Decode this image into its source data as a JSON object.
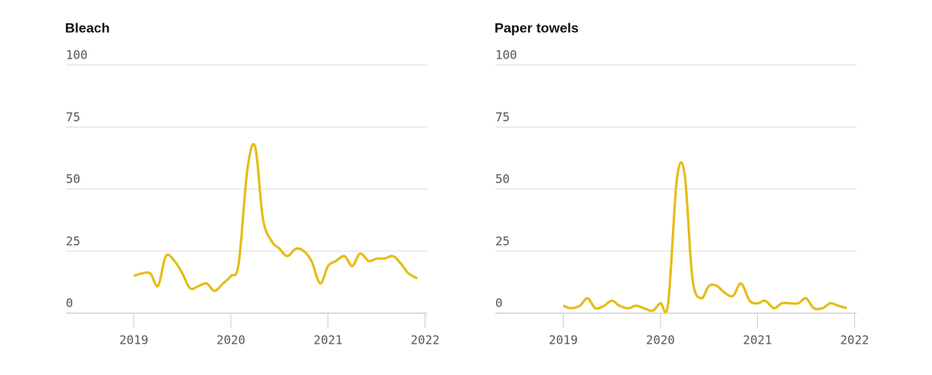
{
  "chart_data": [
    {
      "type": "line",
      "title": "Bleach",
      "x": [
        2019,
        2019.08,
        2019.17,
        2019.25,
        2019.33,
        2019.42,
        2019.5,
        2019.58,
        2019.67,
        2019.75,
        2019.83,
        2019.92,
        2020,
        2020.08,
        2020.17,
        2020.25,
        2020.33,
        2020.42,
        2020.5,
        2020.58,
        2020.67,
        2020.75,
        2020.83,
        2020.92,
        2021,
        2021.08,
        2021.17,
        2021.25,
        2021.33,
        2021.42,
        2021.5,
        2021.58,
        2021.67,
        2021.75,
        2021.83,
        2021.92
      ],
      "series": [
        {
          "color": "#e5bc17",
          "values": [
            15,
            16,
            16,
            11,
            23,
            21,
            16,
            10,
            11,
            12,
            9,
            12,
            15,
            20,
            58,
            67,
            38,
            29,
            26,
            23,
            26,
            25,
            21,
            12,
            19,
            21,
            23,
            19,
            24,
            21,
            22,
            22,
            23,
            20,
            16,
            14
          ]
        }
      ],
      "xlim": [
        2018.3,
        2022.02
      ],
      "xticks": [
        2019,
        2020,
        2021,
        2022
      ],
      "ylim": [
        0,
        100
      ],
      "yticks": [
        0,
        25,
        50,
        75,
        100
      ],
      "grid": true
    },
    {
      "type": "line",
      "title": "Paper towels",
      "x": [
        2019,
        2019.08,
        2019.17,
        2019.25,
        2019.33,
        2019.42,
        2019.5,
        2019.58,
        2019.67,
        2019.75,
        2019.83,
        2019.92,
        2020,
        2020.08,
        2020.17,
        2020.25,
        2020.33,
        2020.42,
        2020.5,
        2020.58,
        2020.67,
        2020.75,
        2020.83,
        2020.92,
        2021,
        2021.08,
        2021.17,
        2021.25,
        2021.33,
        2021.42,
        2021.5,
        2021.58,
        2021.67,
        2021.75,
        2021.83,
        2021.92
      ],
      "series": [
        {
          "color": "#e5bc17",
          "values": [
            3,
            2,
            3,
            6,
            2,
            3,
            5,
            3,
            2,
            3,
            2,
            1,
            4,
            4,
            54,
            56,
            14,
            6,
            11,
            11,
            8,
            7,
            12,
            5,
            4,
            5,
            2,
            4,
            4,
            4,
            6,
            2,
            2,
            4,
            3,
            2
          ]
        }
      ],
      "xlim": [
        2018.3,
        2022.02
      ],
      "xticks": [
        2019,
        2020,
        2021,
        2022
      ],
      "ylim": [
        0,
        100
      ],
      "yticks": [
        0,
        25,
        50,
        75,
        100
      ],
      "grid": true
    }
  ]
}
